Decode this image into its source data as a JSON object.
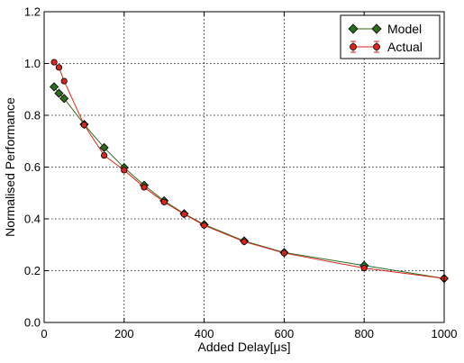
{
  "chart_data": {
    "type": "line",
    "xlabel": "Added Delay[μs]",
    "ylabel": "Normalised Performance",
    "xlim": [
      0,
      1000
    ],
    "ylim": [
      0.0,
      1.2
    ],
    "x_ticks": [
      0,
      200,
      400,
      600,
      800,
      1000
    ],
    "y_ticks": [
      0.0,
      0.2,
      0.4,
      0.6,
      0.8,
      1.0,
      1.2
    ],
    "x_tick_labels": [
      "0",
      "200",
      "400",
      "600",
      "800",
      "1000"
    ],
    "y_tick_labels": [
      "0.0",
      "0.2",
      "0.4",
      "0.6",
      "0.8",
      "1.0",
      "1.2"
    ],
    "grid": true,
    "grid_style": "dotted",
    "legend_position": "top-right",
    "series": [
      {
        "name": "Model",
        "color": "#2e6b1f",
        "marker": "diamond",
        "x": [
          25,
          37,
          50,
          100,
          150,
          200,
          250,
          300,
          350,
          400,
          500,
          600,
          800,
          1000
        ],
        "y": [
          0.91,
          0.885,
          0.865,
          0.765,
          0.675,
          0.598,
          0.53,
          0.47,
          0.42,
          0.378,
          0.315,
          0.27,
          0.22,
          0.17
        ]
      },
      {
        "name": "Actual",
        "color": "#d9261c",
        "marker": "circle",
        "errorbars": true,
        "x": [
          25,
          37,
          50,
          100,
          150,
          200,
          250,
          300,
          350,
          400,
          500,
          600,
          800,
          1000
        ],
        "y": [
          1.005,
          0.985,
          0.932,
          0.763,
          0.645,
          0.588,
          0.522,
          0.465,
          0.418,
          0.375,
          0.312,
          0.268,
          0.21,
          0.17
        ]
      }
    ]
  }
}
